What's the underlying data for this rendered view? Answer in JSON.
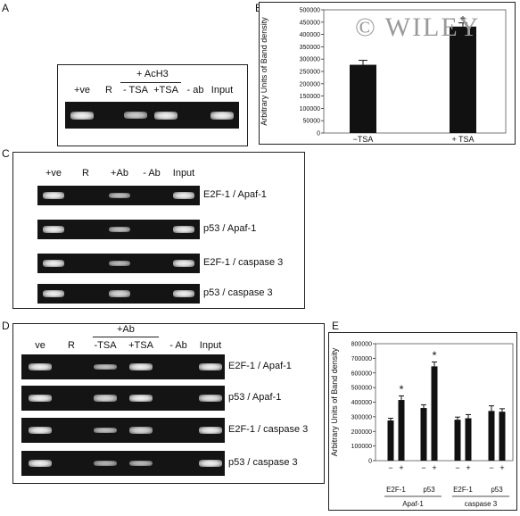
{
  "panels": {
    "A": "A",
    "B": "B",
    "C": "C",
    "D": "D",
    "E": "E"
  },
  "watermark": "© WILEY",
  "panelA": {
    "group_label": "+ AcH3",
    "lanes": [
      "+ve",
      "R",
      "- TSA",
      "+TSA",
      "- ab",
      "Input"
    ],
    "bands": [
      1,
      0,
      0.7,
      1,
      0,
      1
    ]
  },
  "panelB": {
    "chart_data": {
      "type": "bar",
      "categories": [
        "−TSA",
        "+ TSA"
      ],
      "values": [
        277000,
        432000
      ],
      "errors": [
        18000,
        15000
      ],
      "significant": [
        false,
        true
      ],
      "ylabel": "Arbitrary Units of Band density",
      "ylim": [
        0,
        500000
      ],
      "yticks": [
        0,
        50000,
        100000,
        150000,
        200000,
        250000,
        300000,
        350000,
        400000,
        450000,
        500000
      ]
    }
  },
  "panelC": {
    "lanes": [
      "+ve",
      "R",
      "+Ab",
      "- Ab",
      "Input"
    ],
    "rows": [
      {
        "label": "E2F-1 / Apaf-1",
        "bands": [
          1,
          0,
          0.6,
          0,
          1
        ]
      },
      {
        "label": "p53 / Apaf-1",
        "bands": [
          1,
          0,
          0.6,
          0,
          1
        ]
      },
      {
        "label": "E2F-1 / caspase 3",
        "bands": [
          1,
          0,
          0.55,
          0,
          1
        ]
      },
      {
        "label": "p53 / caspase 3",
        "bands": [
          1,
          0,
          0.8,
          0,
          1
        ]
      }
    ]
  },
  "panelD": {
    "group_label": "+Ab",
    "lanes": [
      "ve",
      "R",
      "-TSA",
      "+TSA",
      "- Ab",
      "Input"
    ],
    "rows": [
      {
        "label": "E2F-1 / Apaf-1",
        "bands": [
          1,
          0,
          0.6,
          1,
          0,
          1
        ]
      },
      {
        "label": "p53 / Apaf-1",
        "bands": [
          1,
          0,
          0.8,
          1,
          0,
          0.9
        ]
      },
      {
        "label": "E2F-1 / caspase 3",
        "bands": [
          1,
          0,
          0.6,
          0.8,
          0,
          1
        ]
      },
      {
        "label": "p53 / caspase 3",
        "bands": [
          1,
          0,
          0.5,
          0.55,
          0,
          1
        ]
      }
    ]
  },
  "panelE": {
    "chart_data": {
      "type": "bar",
      "ylabel": "Arbitrary Units of Band density",
      "ylim": [
        0,
        800000
      ],
      "yticks": [
        0,
        100000,
        200000,
        300000,
        400000,
        500000,
        600000,
        700000,
        800000
      ],
      "sign_labels": [
        "−",
        "+"
      ],
      "groups": [
        {
          "factor": "E2F-1",
          "gene": "Apaf-1",
          "values": [
            275000,
            415000
          ],
          "errors": [
            15000,
            28000
          ],
          "significant": [
            false,
            true
          ]
        },
        {
          "factor": "p53",
          "gene": "Apaf-1",
          "values": [
            360000,
            645000
          ],
          "errors": [
            22000,
            30000
          ],
          "significant": [
            false,
            true
          ]
        },
        {
          "factor": "E2F-1",
          "gene": "caspase 3",
          "values": [
            280000,
            290000
          ],
          "errors": [
            18000,
            25000
          ],
          "significant": [
            false,
            false
          ]
        },
        {
          "factor": "p53",
          "gene": "caspase 3",
          "values": [
            340000,
            335000
          ],
          "errors": [
            35000,
            20000
          ],
          "significant": [
            false,
            false
          ]
        }
      ],
      "gene_labels": [
        "Apaf-1",
        "caspase 3"
      ],
      "star": "*"
    }
  }
}
